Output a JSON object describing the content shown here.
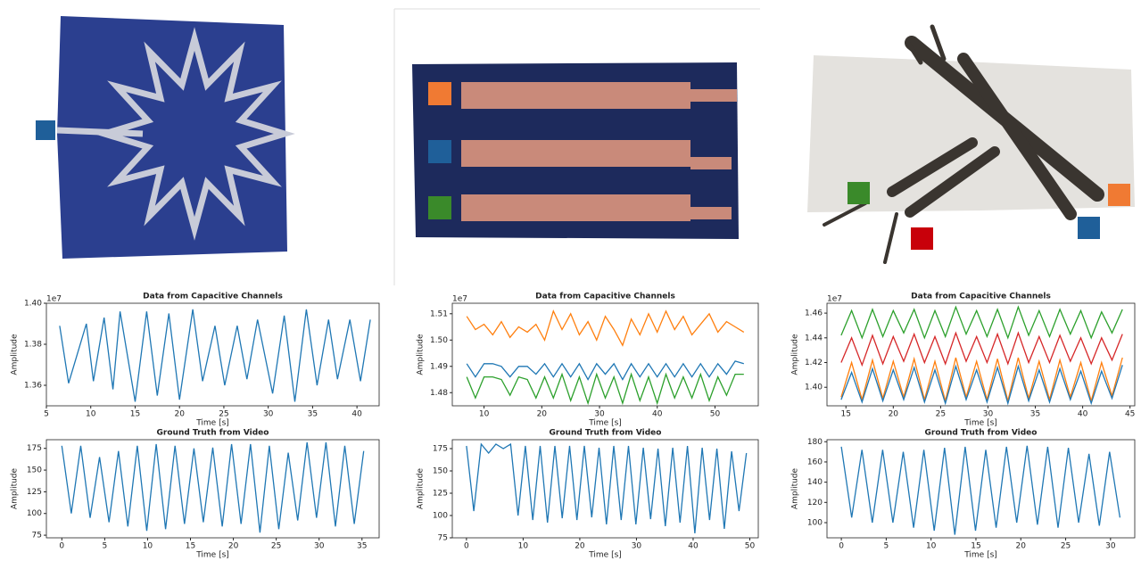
{
  "chart_data": [
    {
      "type": "line",
      "title": "Data from Capacitive Channels",
      "xlabel": "Time [s]",
      "ylabel": "Amplitude",
      "y_offset_label": "1e7",
      "x": [
        6.5,
        7.5,
        9.5,
        10.3,
        11.5,
        12.5,
        13.3,
        15,
        16.3,
        17.5,
        18.8,
        20,
        21.5,
        22.6,
        24,
        25.1,
        26.5,
        27.6,
        28.8,
        30.5,
        31.8,
        33,
        34.3,
        35.5,
        36.8,
        37.8,
        39.2,
        40.4,
        41.5
      ],
      "series": [
        {
          "color": "#1f77b4",
          "values": [
            1.389,
            1.361,
            1.39,
            1.362,
            1.393,
            1.358,
            1.396,
            1.352,
            1.396,
            1.355,
            1.395,
            1.353,
            1.397,
            1.362,
            1.389,
            1.36,
            1.389,
            1.363,
            1.392,
            1.356,
            1.394,
            1.352,
            1.397,
            1.36,
            1.392,
            1.363,
            1.392,
            1.362,
            1.392
          ]
        }
      ],
      "xlim": [
        5,
        42.5
      ],
      "ylim": [
        1.35,
        1.4
      ],
      "xticks": [
        5,
        10,
        15,
        20,
        25,
        30,
        35,
        40
      ],
      "yticks": [
        1.36,
        1.38,
        {
          "value": 1.4,
          "label": "1.40"
        }
      ]
    },
    {
      "type": "line",
      "title": "Data from Capacitive Channels",
      "xlabel": "Time [s]",
      "ylabel": "Amplitude",
      "y_offset_label": "1e7",
      "x": [
        7,
        8.5,
        10,
        11.5,
        13,
        14.5,
        16,
        17.5,
        19,
        20.5,
        22,
        23.5,
        25,
        26.5,
        28,
        29.5,
        31,
        32.5,
        34,
        35.5,
        37,
        38.5,
        40,
        41.5,
        43,
        44.5,
        46,
        47.5,
        49,
        50.5,
        52,
        53.5,
        55
      ],
      "series": [
        {
          "color": "#ff7f0e",
          "values": [
            1.509,
            1.504,
            1.506,
            1.502,
            1.507,
            1.501,
            1.505,
            1.503,
            1.506,
            1.5,
            1.511,
            1.504,
            1.51,
            1.502,
            1.507,
            1.5,
            1.509,
            1.504,
            1.498,
            1.508,
            1.502,
            1.51,
            1.503,
            1.511,
            1.504,
            1.509,
            1.502,
            1.506,
            1.51,
            1.503,
            1.507,
            1.505,
            1.503
          ]
        },
        {
          "color": "#1f77b4",
          "values": [
            1.491,
            1.486,
            1.491,
            1.491,
            1.49,
            1.486,
            1.49,
            1.49,
            1.487,
            1.491,
            1.486,
            1.491,
            1.486,
            1.491,
            1.485,
            1.491,
            1.487,
            1.491,
            1.485,
            1.491,
            1.486,
            1.491,
            1.486,
            1.491,
            1.486,
            1.491,
            1.486,
            1.491,
            1.486,
            1.491,
            1.487,
            1.492,
            1.491
          ]
        },
        {
          "color": "#2ca02c",
          "values": [
            1.486,
            1.478,
            1.486,
            1.486,
            1.485,
            1.479,
            1.486,
            1.485,
            1.478,
            1.486,
            1.478,
            1.487,
            1.477,
            1.486,
            1.476,
            1.487,
            1.478,
            1.486,
            1.476,
            1.487,
            1.477,
            1.486,
            1.476,
            1.487,
            1.478,
            1.486,
            1.478,
            1.487,
            1.477,
            1.486,
            1.479,
            1.487,
            1.487
          ]
        }
      ],
      "xlim": [
        4.5,
        57.5
      ],
      "ylim": [
        1.475,
        1.514
      ],
      "xticks": [
        10,
        20,
        30,
        40,
        50
      ],
      "yticks": [
        1.48,
        1.49,
        {
          "value": 1.5,
          "label": "1.50"
        },
        1.51
      ]
    },
    {
      "type": "line",
      "title": "Data from Capacitive Channels",
      "xlabel": "Time [s]",
      "ylabel": "Amplitude",
      "y_offset_label": "1e7",
      "x": [
        14.5,
        15.6,
        16.7,
        17.8,
        18.9,
        20,
        21.1,
        22.2,
        23.3,
        24.4,
        25.5,
        26.6,
        27.7,
        28.8,
        29.9,
        31,
        32.1,
        33.2,
        34.3,
        35.4,
        36.5,
        37.6,
        38.7,
        39.8,
        40.9,
        42,
        43.1,
        44.2
      ],
      "series": [
        {
          "color": "#2ca02c",
          "values": [
            1.442,
            1.462,
            1.44,
            1.463,
            1.441,
            1.462,
            1.444,
            1.463,
            1.44,
            1.462,
            1.441,
            1.465,
            1.443,
            1.462,
            1.441,
            1.463,
            1.44,
            1.465,
            1.442,
            1.462,
            1.441,
            1.463,
            1.443,
            1.462,
            1.44,
            1.461,
            1.444,
            1.463
          ]
        },
        {
          "color": "#d62728",
          "values": [
            1.42,
            1.44,
            1.418,
            1.442,
            1.419,
            1.441,
            1.421,
            1.443,
            1.42,
            1.441,
            1.419,
            1.444,
            1.421,
            1.441,
            1.42,
            1.443,
            1.419,
            1.444,
            1.42,
            1.441,
            1.42,
            1.442,
            1.421,
            1.44,
            1.419,
            1.44,
            1.422,
            1.443
          ]
        },
        {
          "color": "#ff7f0e",
          "values": [
            1.392,
            1.42,
            1.39,
            1.422,
            1.391,
            1.421,
            1.392,
            1.423,
            1.39,
            1.421,
            1.389,
            1.424,
            1.392,
            1.421,
            1.39,
            1.423,
            1.389,
            1.424,
            1.391,
            1.421,
            1.39,
            1.422,
            1.392,
            1.42,
            1.389,
            1.42,
            1.393,
            1.424
          ]
        },
        {
          "color": "#1f77b4",
          "values": [
            1.39,
            1.412,
            1.388,
            1.415,
            1.389,
            1.414,
            1.39,
            1.416,
            1.388,
            1.414,
            1.387,
            1.417,
            1.39,
            1.414,
            1.388,
            1.416,
            1.387,
            1.417,
            1.389,
            1.414,
            1.388,
            1.415,
            1.39,
            1.413,
            1.387,
            1.413,
            1.391,
            1.418
          ]
        }
      ],
      "xlim": [
        13,
        45.5
      ],
      "ylim": [
        1.385,
        1.468
      ],
      "xticks": [
        15,
        20,
        25,
        30,
        35,
        40,
        45
      ],
      "yticks": [
        {
          "value": 1.4,
          "label": "1.40"
        },
        1.42,
        1.44,
        1.46
      ]
    },
    {
      "type": "line",
      "title": "Ground Truth from Video",
      "xlabel": "Time [s]",
      "ylabel": "Amplitude",
      "x": [
        0,
        1.1,
        2.2,
        3.3,
        4.4,
        5.5,
        6.6,
        7.7,
        8.8,
        9.9,
        11,
        12.1,
        13.2,
        14.3,
        15.4,
        16.5,
        17.6,
        18.7,
        19.8,
        20.9,
        22,
        23.1,
        24.2,
        25.3,
        26.4,
        27.5,
        28.6,
        29.7,
        30.8,
        31.9,
        33,
        34.1,
        35.2
      ],
      "series": [
        {
          "color": "#1f77b4",
          "values": [
            178,
            100,
            178,
            95,
            165,
            90,
            172,
            85,
            178,
            80,
            180,
            82,
            178,
            88,
            175,
            90,
            176,
            85,
            180,
            88,
            180,
            78,
            178,
            82,
            170,
            92,
            182,
            95,
            182,
            85,
            178,
            88,
            172
          ]
        }
      ],
      "xlim": [
        -1.8,
        37
      ],
      "ylim": [
        72,
        185
      ],
      "xticks": [
        0,
        5,
        10,
        15,
        20,
        25,
        30,
        35
      ],
      "yticks": [
        75,
        100,
        125,
        150,
        175
      ]
    },
    {
      "type": "line",
      "title": "Ground Truth from Video",
      "xlabel": "Time [s]",
      "ylabel": "Amplitude",
      "x": [
        0,
        1.3,
        2.6,
        3.9,
        5.2,
        6.5,
        7.8,
        9.1,
        10.4,
        11.7,
        13,
        14.3,
        15.6,
        16.9,
        18.2,
        19.5,
        20.8,
        22.1,
        23.4,
        24.7,
        26,
        27.3,
        28.6,
        29.9,
        31.2,
        32.5,
        33.8,
        35.1,
        36.4,
        37.7,
        39,
        40.3,
        41.6,
        42.9,
        44.2,
        45.5,
        46.8,
        48.1,
        49.4
      ],
      "series": [
        {
          "color": "#1f77b4",
          "values": [
            178,
            105,
            180,
            170,
            180,
            175,
            180,
            100,
            178,
            95,
            178,
            92,
            178,
            97,
            178,
            95,
            178,
            98,
            176,
            90,
            178,
            95,
            178,
            90,
            176,
            96,
            175,
            88,
            176,
            92,
            178,
            80,
            176,
            95,
            175,
            85,
            172,
            105,
            170
          ]
        }
      ],
      "xlim": [
        -2.5,
        51.5
      ],
      "ylim": [
        75,
        185
      ],
      "xticks": [
        0,
        10,
        20,
        30,
        40,
        50
      ],
      "yticks": [
        75,
        100,
        125,
        150,
        175
      ]
    },
    {
      "type": "line",
      "title": "Ground Truth from Video",
      "xlabel": "Time [s]",
      "ylabel": "Amplitude",
      "x": [
        0,
        1.15,
        2.3,
        3.45,
        4.6,
        5.75,
        6.9,
        8.05,
        9.2,
        10.35,
        11.5,
        12.65,
        13.8,
        14.95,
        16.1,
        17.25,
        18.4,
        19.55,
        20.7,
        21.85,
        23,
        24.15,
        25.3,
        26.45,
        27.6,
        28.75,
        29.9,
        31.05
      ],
      "series": [
        {
          "color": "#1f77b4",
          "values": [
            175,
            105,
            172,
            100,
            172,
            100,
            170,
            95,
            172,
            92,
            174,
            88,
            175,
            92,
            172,
            95,
            175,
            100,
            176,
            98,
            175,
            95,
            174,
            100,
            168,
            97,
            170,
            105
          ]
        }
      ],
      "xlim": [
        -1.6,
        32.7
      ],
      "ylim": [
        85,
        182
      ],
      "xticks": [
        0,
        5,
        10,
        15,
        20,
        25,
        30
      ],
      "yticks": [
        100,
        120,
        140,
        160,
        180
      ]
    }
  ]
}
